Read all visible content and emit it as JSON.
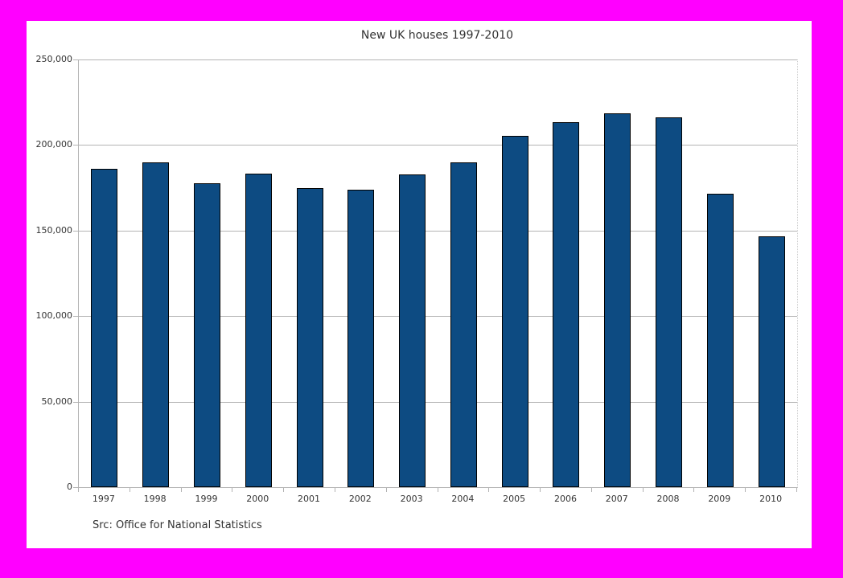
{
  "window": {
    "frame_color": "#ff00ff",
    "panel_color": "#ffffff"
  },
  "chart_data": {
    "type": "bar",
    "title": "New UK houses 1997-2010",
    "source_note": "Src: Office for National Statistics",
    "categories": [
      "1997",
      "1998",
      "1999",
      "2000",
      "2001",
      "2002",
      "2003",
      "2004",
      "2005",
      "2006",
      "2007",
      "2008",
      "2009",
      "2010"
    ],
    "values": [
      186000,
      190000,
      177500,
      183500,
      175000,
      174000,
      183000,
      190000,
      205500,
      213500,
      218500,
      216000,
      171500,
      146500
    ],
    "xlabel": "",
    "ylabel": "",
    "ylim": [
      0,
      250000
    ],
    "ytick_interval": 50000,
    "ytick_values": [
      0,
      50000,
      100000,
      150000,
      200000,
      250000
    ],
    "ytick_labels": [
      "0",
      "50,000",
      "100,000",
      "150,000",
      "200,000",
      "250,000"
    ],
    "grid": "horizontal",
    "legend": "none",
    "bar_color": "#0d4b82",
    "bar_border_color": "#000000",
    "grid_color": "#b3b3b3",
    "axis_color": "#b3b3b3",
    "text_color": "#333333"
  }
}
